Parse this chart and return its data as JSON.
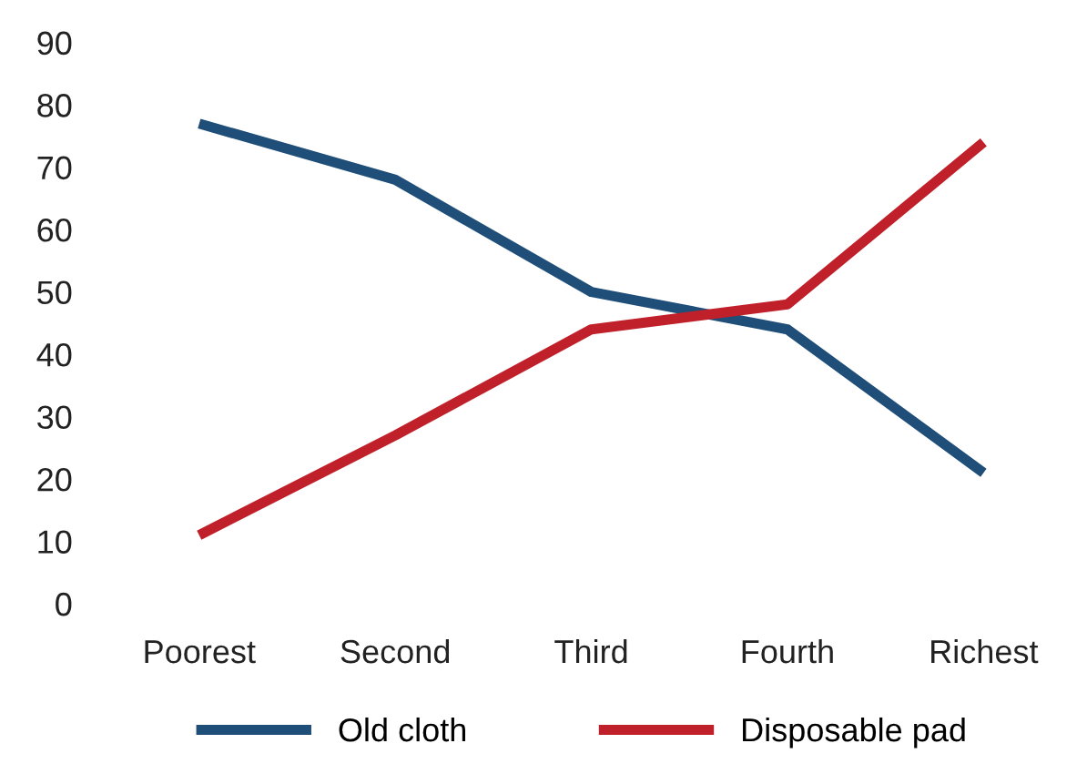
{
  "chart_data": {
    "type": "line",
    "categories": [
      "Poorest",
      "Second",
      "Third",
      "Fourth",
      "Richest"
    ],
    "series": [
      {
        "name": "Old cloth",
        "color": "#1f4e79",
        "values": [
          77,
          68,
          50,
          44,
          21
        ]
      },
      {
        "name": "Disposable pad",
        "color": "#c0202a",
        "values": [
          11,
          27,
          44,
          48,
          74
        ]
      }
    ],
    "ylim": [
      0,
      90
    ],
    "yticks": [
      0,
      10,
      20,
      30,
      40,
      50,
      60,
      70,
      80,
      90
    ],
    "grid": false,
    "legend": "bottom",
    "marker": "none",
    "line_style": "solid"
  }
}
